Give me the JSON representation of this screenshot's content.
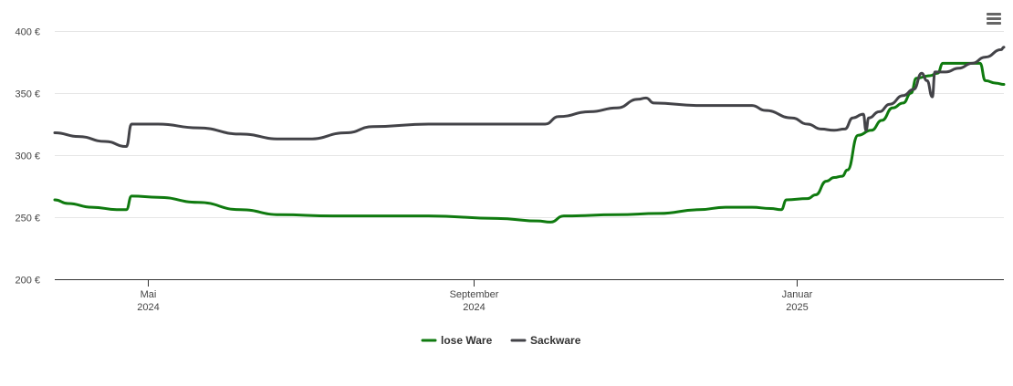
{
  "menu": {
    "icon": "hamburger-menu-icon"
  },
  "chart_data": {
    "type": "line",
    "title": "",
    "xlabel": "",
    "ylabel": "",
    "ylim": [
      200,
      400
    ],
    "x_range": [
      "2024-03-27",
      "2025-03-20"
    ],
    "y_ticks": [
      {
        "value": 400,
        "label": "400 €"
      },
      {
        "value": 350,
        "label": "350 €"
      },
      {
        "value": 300,
        "label": "300 €"
      },
      {
        "value": 250,
        "label": "250 €"
      },
      {
        "value": 200,
        "label": "200 €"
      }
    ],
    "x_ticks": [
      {
        "date": "2024-05-01",
        "month": "Mai",
        "year": "2024"
      },
      {
        "date": "2024-09-01",
        "month": "September",
        "year": "2024"
      },
      {
        "date": "2025-01-01",
        "month": "Januar",
        "year": "2025"
      }
    ],
    "grid": true,
    "legend": "bottom-center",
    "colors": {
      "lose_ware": "#0f7a0f",
      "sackware": "#434348",
      "grid": "#e6e6e6",
      "axis": "#333333"
    },
    "series": [
      {
        "name": "lose Ware",
        "points": [
          [
            "2024-03-27",
            264
          ],
          [
            "2024-04-01",
            261
          ],
          [
            "2024-04-10",
            258
          ],
          [
            "2024-04-20",
            256
          ],
          [
            "2024-04-23",
            256
          ],
          [
            "2024-04-25",
            267
          ],
          [
            "2024-05-05",
            266
          ],
          [
            "2024-05-20",
            262
          ],
          [
            "2024-06-05",
            256
          ],
          [
            "2024-06-20",
            252
          ],
          [
            "2024-07-10",
            251
          ],
          [
            "2024-08-15",
            251
          ],
          [
            "2024-09-10",
            249
          ],
          [
            "2024-09-25",
            247
          ],
          [
            "2024-09-30",
            246
          ],
          [
            "2024-10-05",
            251
          ],
          [
            "2024-10-25",
            252
          ],
          [
            "2024-11-10",
            253
          ],
          [
            "2024-11-25",
            256
          ],
          [
            "2024-12-05",
            258
          ],
          [
            "2024-12-15",
            258
          ],
          [
            "2024-12-22",
            257
          ],
          [
            "2024-12-26",
            256
          ],
          [
            "2024-12-28",
            264
          ],
          [
            "2025-01-05",
            265
          ],
          [
            "2025-01-08",
            268
          ],
          [
            "2025-01-12",
            279
          ],
          [
            "2025-01-15",
            282
          ],
          [
            "2025-01-18",
            283
          ],
          [
            "2025-01-20",
            288
          ],
          [
            "2025-01-24",
            316
          ],
          [
            "2025-01-29",
            320
          ],
          [
            "2025-02-02",
            328
          ],
          [
            "2025-02-06",
            338
          ],
          [
            "2025-02-10",
            342
          ],
          [
            "2025-02-13",
            350
          ],
          [
            "2025-02-15",
            362
          ],
          [
            "2025-02-20",
            364
          ],
          [
            "2025-02-23",
            366
          ],
          [
            "2025-02-25",
            374
          ],
          [
            "2025-03-03",
            374
          ],
          [
            "2025-03-07",
            374
          ],
          [
            "2025-03-11",
            374
          ],
          [
            "2025-03-13",
            360
          ],
          [
            "2025-03-17",
            358
          ],
          [
            "2025-03-20",
            357
          ]
        ]
      },
      {
        "name": "Sackware",
        "points": [
          [
            "2024-03-27",
            318
          ],
          [
            "2024-04-05",
            315
          ],
          [
            "2024-04-15",
            311
          ],
          [
            "2024-04-23",
            307
          ],
          [
            "2024-04-25",
            325
          ],
          [
            "2024-05-05",
            325
          ],
          [
            "2024-05-20",
            322
          ],
          [
            "2024-06-05",
            317
          ],
          [
            "2024-06-20",
            313
          ],
          [
            "2024-07-01",
            313
          ],
          [
            "2024-07-15",
            318
          ],
          [
            "2024-07-25",
            323
          ],
          [
            "2024-08-15",
            325
          ],
          [
            "2024-09-28",
            325
          ],
          [
            "2024-10-03",
            331
          ],
          [
            "2024-10-15",
            335
          ],
          [
            "2024-10-25",
            338
          ],
          [
            "2024-11-02",
            345
          ],
          [
            "2024-11-05",
            346
          ],
          [
            "2024-11-08",
            342
          ],
          [
            "2024-11-25",
            340
          ],
          [
            "2024-12-05",
            340
          ],
          [
            "2024-12-15",
            340
          ],
          [
            "2024-12-20",
            336
          ],
          [
            "2024-12-30",
            330
          ],
          [
            "2025-01-05",
            325
          ],
          [
            "2025-01-10",
            321
          ],
          [
            "2025-01-15",
            320
          ],
          [
            "2025-01-19",
            321
          ],
          [
            "2025-01-22",
            330
          ],
          [
            "2025-01-26",
            333
          ],
          [
            "2025-01-27",
            320
          ],
          [
            "2025-01-28",
            330
          ],
          [
            "2025-02-01",
            335
          ],
          [
            "2025-02-05",
            341
          ],
          [
            "2025-02-10",
            348
          ],
          [
            "2025-02-14",
            353
          ],
          [
            "2025-02-17",
            366
          ],
          [
            "2025-02-19",
            360
          ],
          [
            "2025-02-21",
            347
          ],
          [
            "2025-02-22",
            367
          ],
          [
            "2025-02-26",
            367
          ],
          [
            "2025-03-03",
            370
          ],
          [
            "2025-03-08",
            374
          ],
          [
            "2025-03-13",
            379
          ],
          [
            "2025-03-19",
            385
          ],
          [
            "2025-03-20",
            387
          ]
        ]
      }
    ]
  }
}
